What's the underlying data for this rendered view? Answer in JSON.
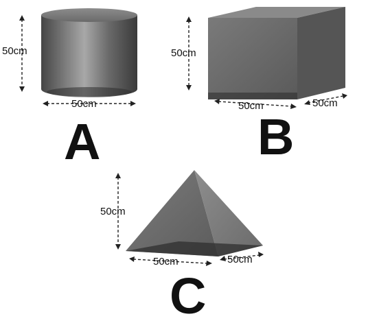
{
  "shapes": [
    {
      "id": "A",
      "letter": "A",
      "kind": "cylinder",
      "height_label": "50cm",
      "width_label": "50cm"
    },
    {
      "id": "B",
      "letter": "B",
      "kind": "cube",
      "height_label": "50cm",
      "width_label": "50cm",
      "depth_label": "50cm"
    },
    {
      "id": "C",
      "letter": "C",
      "kind": "pyramid",
      "height_label": "50cm",
      "width_label": "50cm",
      "depth_label": "50cm"
    }
  ],
  "colors": {
    "shape_fill": "#6e6e6e",
    "shape_dark": "#3c3c3c",
    "shape_light": "#9a9a9a",
    "text": "#111111",
    "background": "#ffffff"
  }
}
